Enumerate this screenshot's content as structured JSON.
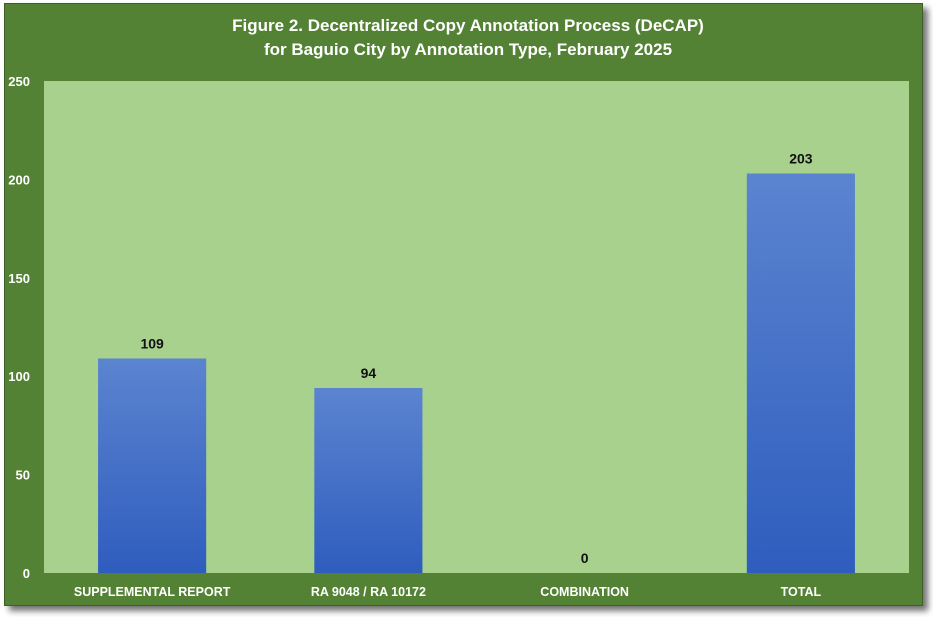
{
  "chart_data": {
    "type": "bar",
    "title_lines": [
      "Figure 2. Decentralized Copy Annotation Process (DeCAP)",
      "for Baguio City by Annotation Type, February 2025"
    ],
    "categories": [
      "SUPPLEMENTAL REPORT",
      "RA 9048 / RA 10172",
      "COMBINATION",
      "TOTAL"
    ],
    "values": [
      109,
      94,
      0,
      203
    ],
    "data_labels": [
      "109",
      "94",
      "0",
      "203"
    ],
    "ylim": [
      0,
      250
    ],
    "yticks": [
      0,
      50,
      100,
      150,
      200,
      250
    ],
    "xlabel": "",
    "ylabel": "",
    "grid": false,
    "legend": false,
    "colors": {
      "frame": "#548235",
      "plot_area": "#A9D18E",
      "bar_top": "#5B84D0",
      "bar_bottom": "#2F5DBE",
      "text": "#FFFFFF",
      "data_label": "#111111"
    }
  }
}
